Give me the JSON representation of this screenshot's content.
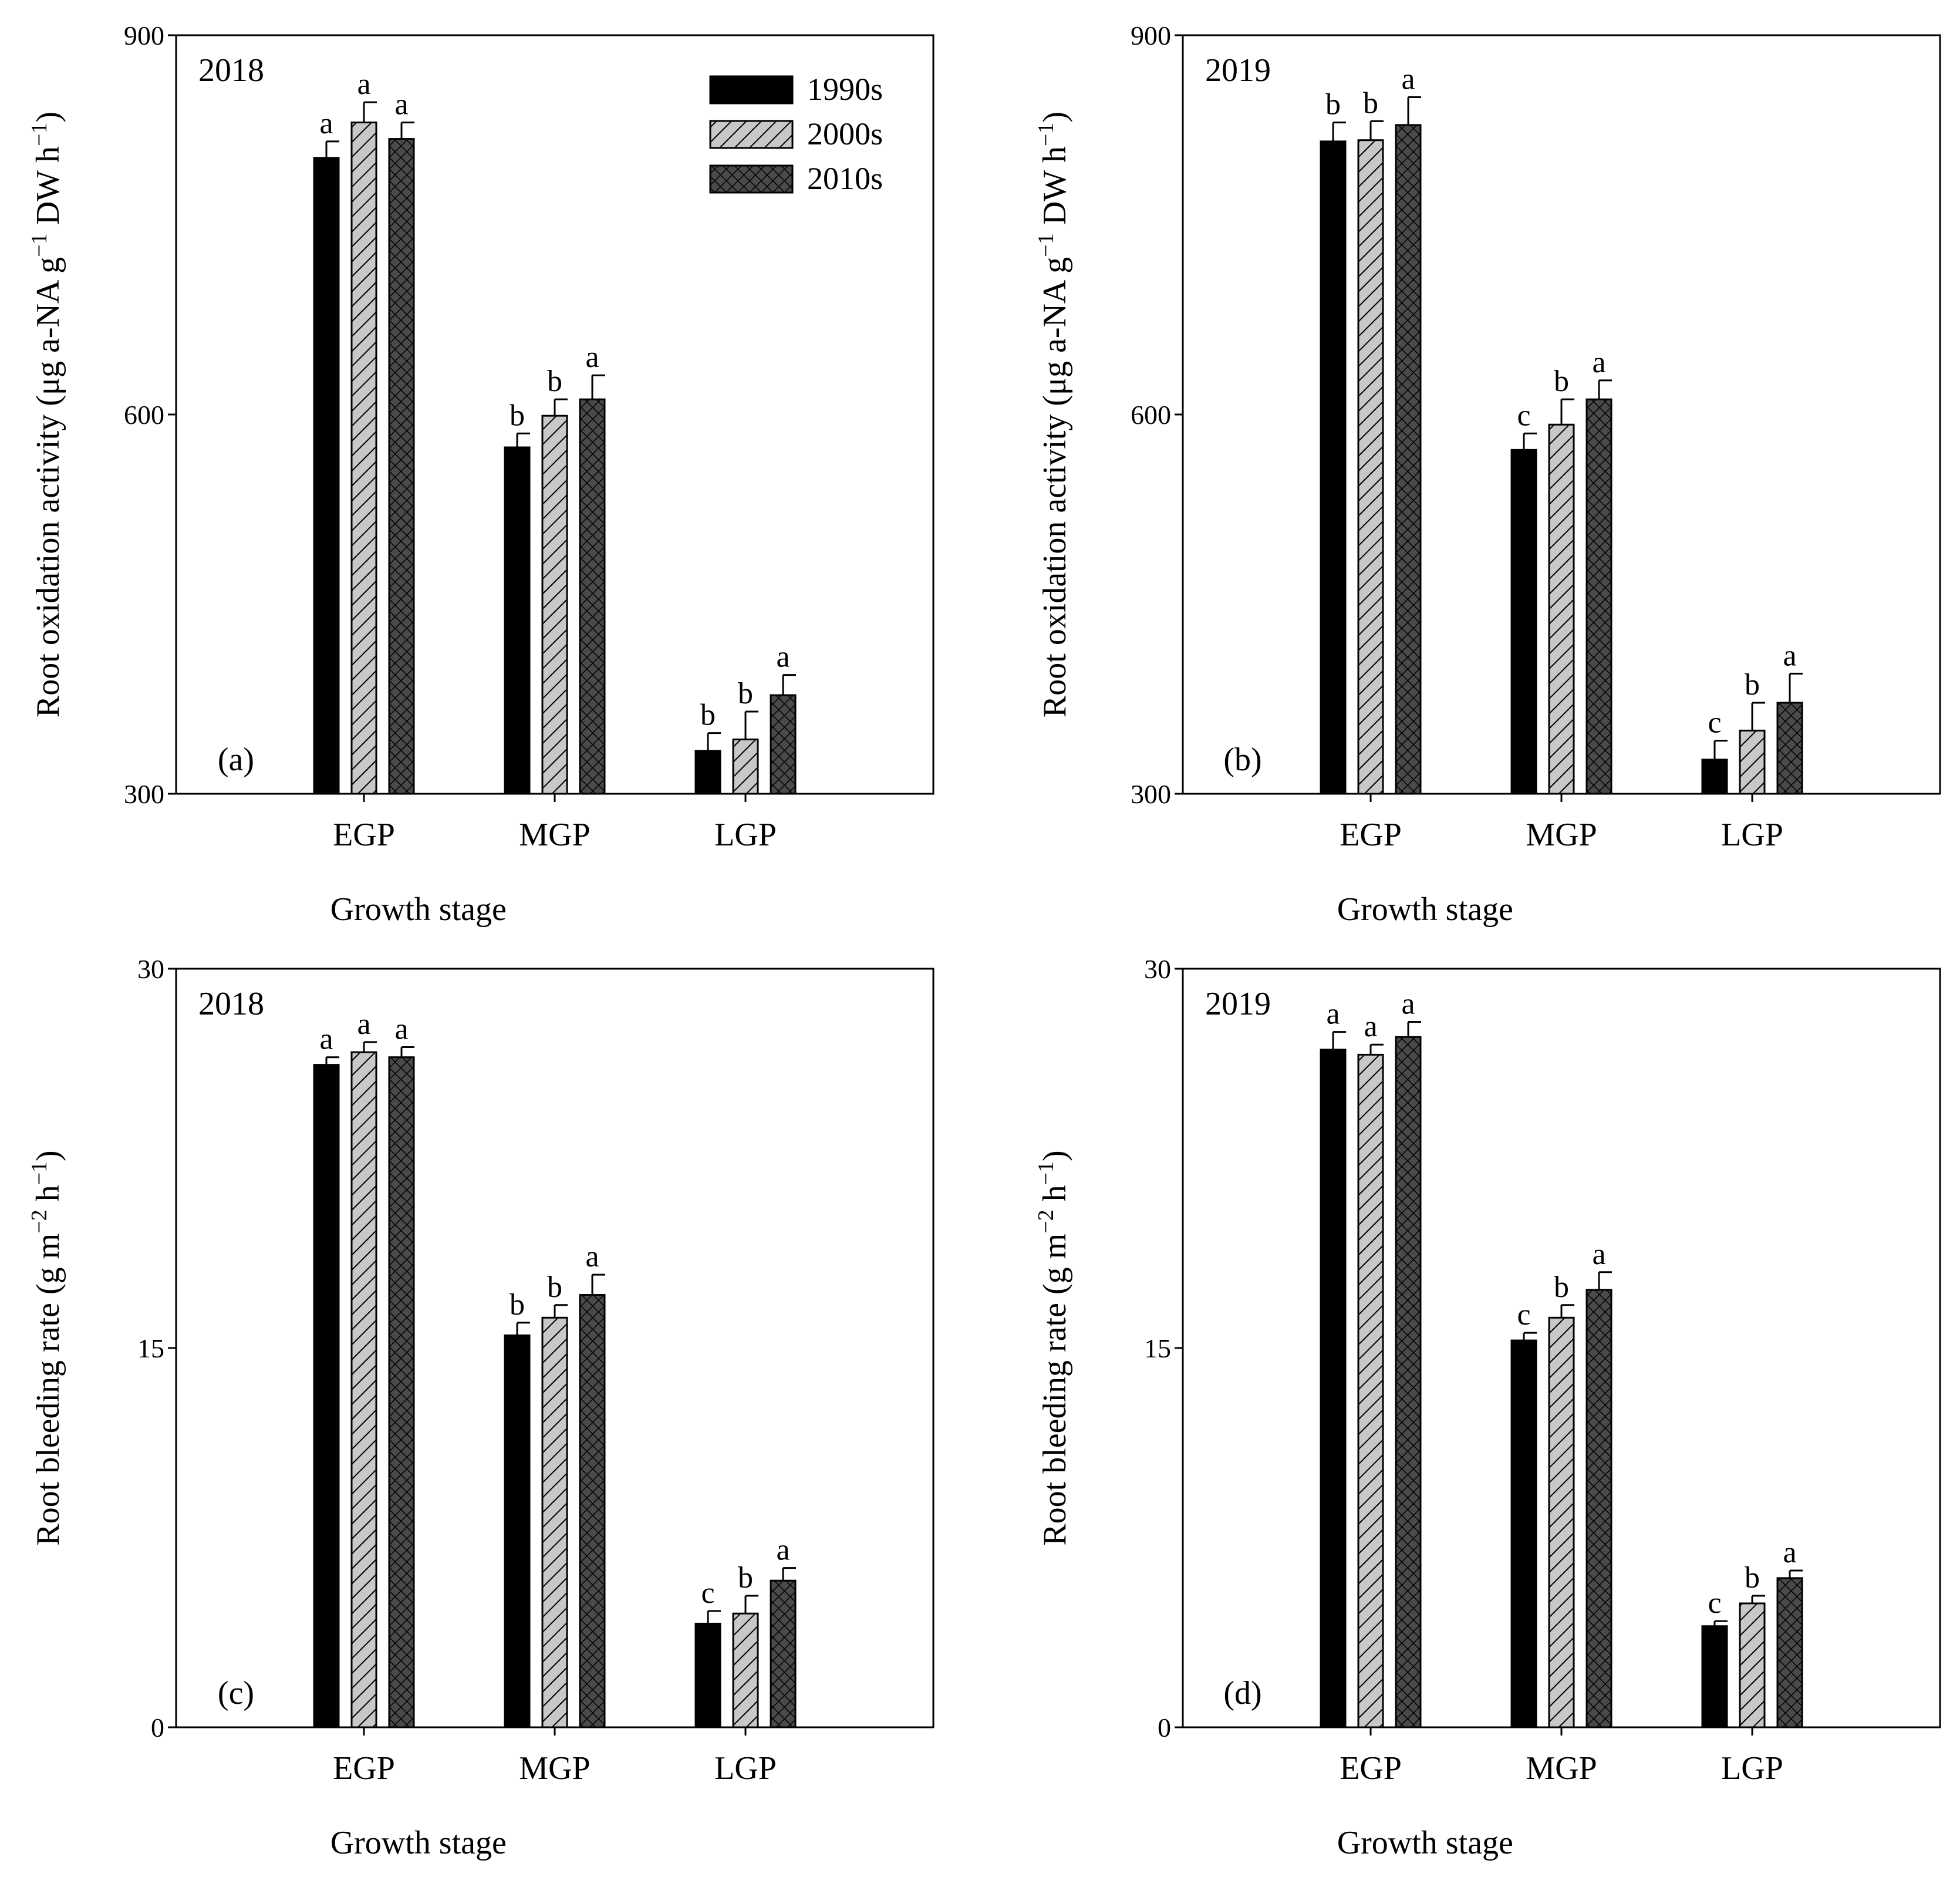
{
  "figure": {
    "legend": [
      {
        "name": "1990s",
        "fill": "solid",
        "color": "#000000"
      },
      {
        "name": "2000s",
        "fill": "diagonal-hatch",
        "color": "#c8c8c8"
      },
      {
        "name": "2010s",
        "fill": "crosshatch",
        "color": "#4a4a4a"
      }
    ]
  },
  "chart_data": [
    {
      "id": "a",
      "type": "bar",
      "year_label": "2018",
      "panel_label": "(a)",
      "xlabel": "Growth stage",
      "ylabel_parts": [
        "Root oxidation activity (μg a-NA g",
        "−1",
        " DW h",
        "−1",
        ")"
      ],
      "ylim": [
        300,
        900
      ],
      "yticks": [
        300,
        600,
        900
      ],
      "categories": [
        "EGP",
        "MGP",
        "LGP"
      ],
      "series": [
        {
          "name": "1990s",
          "values": [
            803,
            574,
            334
          ],
          "errors": [
            13,
            11,
            14
          ],
          "letters": [
            "a",
            "b",
            "b"
          ]
        },
        {
          "name": "2000s",
          "values": [
            831,
            599,
            343
          ],
          "errors": [
            16,
            13,
            22
          ],
          "letters": [
            "a",
            "b",
            "b"
          ]
        },
        {
          "name": "2010s",
          "values": [
            818,
            612,
            378
          ],
          "errors": [
            13,
            19,
            16
          ],
          "letters": [
            "a",
            "a",
            "a"
          ]
        }
      ],
      "show_legend": true
    },
    {
      "id": "b",
      "type": "bar",
      "year_label": "2019",
      "panel_label": "(b)",
      "xlabel": "Growth stage",
      "ylabel_parts": [
        "Root oxidation activity (μg a-NA g",
        "−1",
        " DW h",
        "−1",
        ")"
      ],
      "ylim": [
        300,
        900
      ],
      "yticks": [
        300,
        600,
        900
      ],
      "categories": [
        "EGP",
        "MGP",
        "LGP"
      ],
      "series": [
        {
          "name": "1990s",
          "values": [
            816,
            572,
            327
          ],
          "errors": [
            15,
            13,
            15
          ],
          "letters": [
            "b",
            "c",
            "c"
          ]
        },
        {
          "name": "2000s",
          "values": [
            817,
            592,
            350
          ],
          "errors": [
            15,
            20,
            22
          ],
          "letters": [
            "b",
            "b",
            "b"
          ]
        },
        {
          "name": "2010s",
          "values": [
            829,
            612,
            372
          ],
          "errors": [
            22,
            15,
            23
          ],
          "letters": [
            "a",
            "a",
            "a"
          ]
        }
      ],
      "show_legend": false
    },
    {
      "id": "c",
      "type": "bar",
      "year_label": "2018",
      "panel_label": "(c)",
      "xlabel": "Growth stage",
      "ylabel_parts": [
        "Root bleeding rate (g m",
        "−2",
        " h",
        "−1",
        ")"
      ],
      "ylim": [
        0,
        30
      ],
      "yticks": [
        0,
        15,
        30
      ],
      "categories": [
        "EGP",
        "MGP",
        "LGP"
      ],
      "series": [
        {
          "name": "1990s",
          "values": [
            26.2,
            15.5,
            4.1
          ],
          "errors": [
            0.3,
            0.5,
            0.5
          ],
          "letters": [
            "a",
            "b",
            "c"
          ]
        },
        {
          "name": "2000s",
          "values": [
            26.7,
            16.2,
            4.5
          ],
          "errors": [
            0.4,
            0.5,
            0.7
          ],
          "letters": [
            "a",
            "b",
            "b"
          ]
        },
        {
          "name": "2010s",
          "values": [
            26.5,
            17.1,
            5.8
          ],
          "errors": [
            0.4,
            0.8,
            0.5
          ],
          "letters": [
            "a",
            "a",
            "a"
          ]
        }
      ],
      "show_legend": false
    },
    {
      "id": "d",
      "type": "bar",
      "year_label": "2019",
      "panel_label": "(d)",
      "xlabel": "Growth stage",
      "ylabel_parts": [
        "Root bleeding rate (g m",
        "−2",
        " h",
        "−1",
        ")"
      ],
      "ylim": [
        0,
        30
      ],
      "yticks": [
        0,
        15,
        30
      ],
      "categories": [
        "EGP",
        "MGP",
        "LGP"
      ],
      "series": [
        {
          "name": "1990s",
          "values": [
            26.8,
            15.3,
            4.0
          ],
          "errors": [
            0.7,
            0.3,
            0.2
          ],
          "letters": [
            "a",
            "c",
            "c"
          ]
        },
        {
          "name": "2000s",
          "values": [
            26.6,
            16.2,
            4.9
          ],
          "errors": [
            0.4,
            0.5,
            0.3
          ],
          "letters": [
            "a",
            "b",
            "b"
          ]
        },
        {
          "name": "2010s",
          "values": [
            27.3,
            17.3,
            5.9
          ],
          "errors": [
            0.6,
            0.7,
            0.3
          ],
          "letters": [
            "a",
            "a",
            "a"
          ]
        }
      ],
      "show_legend": false
    }
  ]
}
